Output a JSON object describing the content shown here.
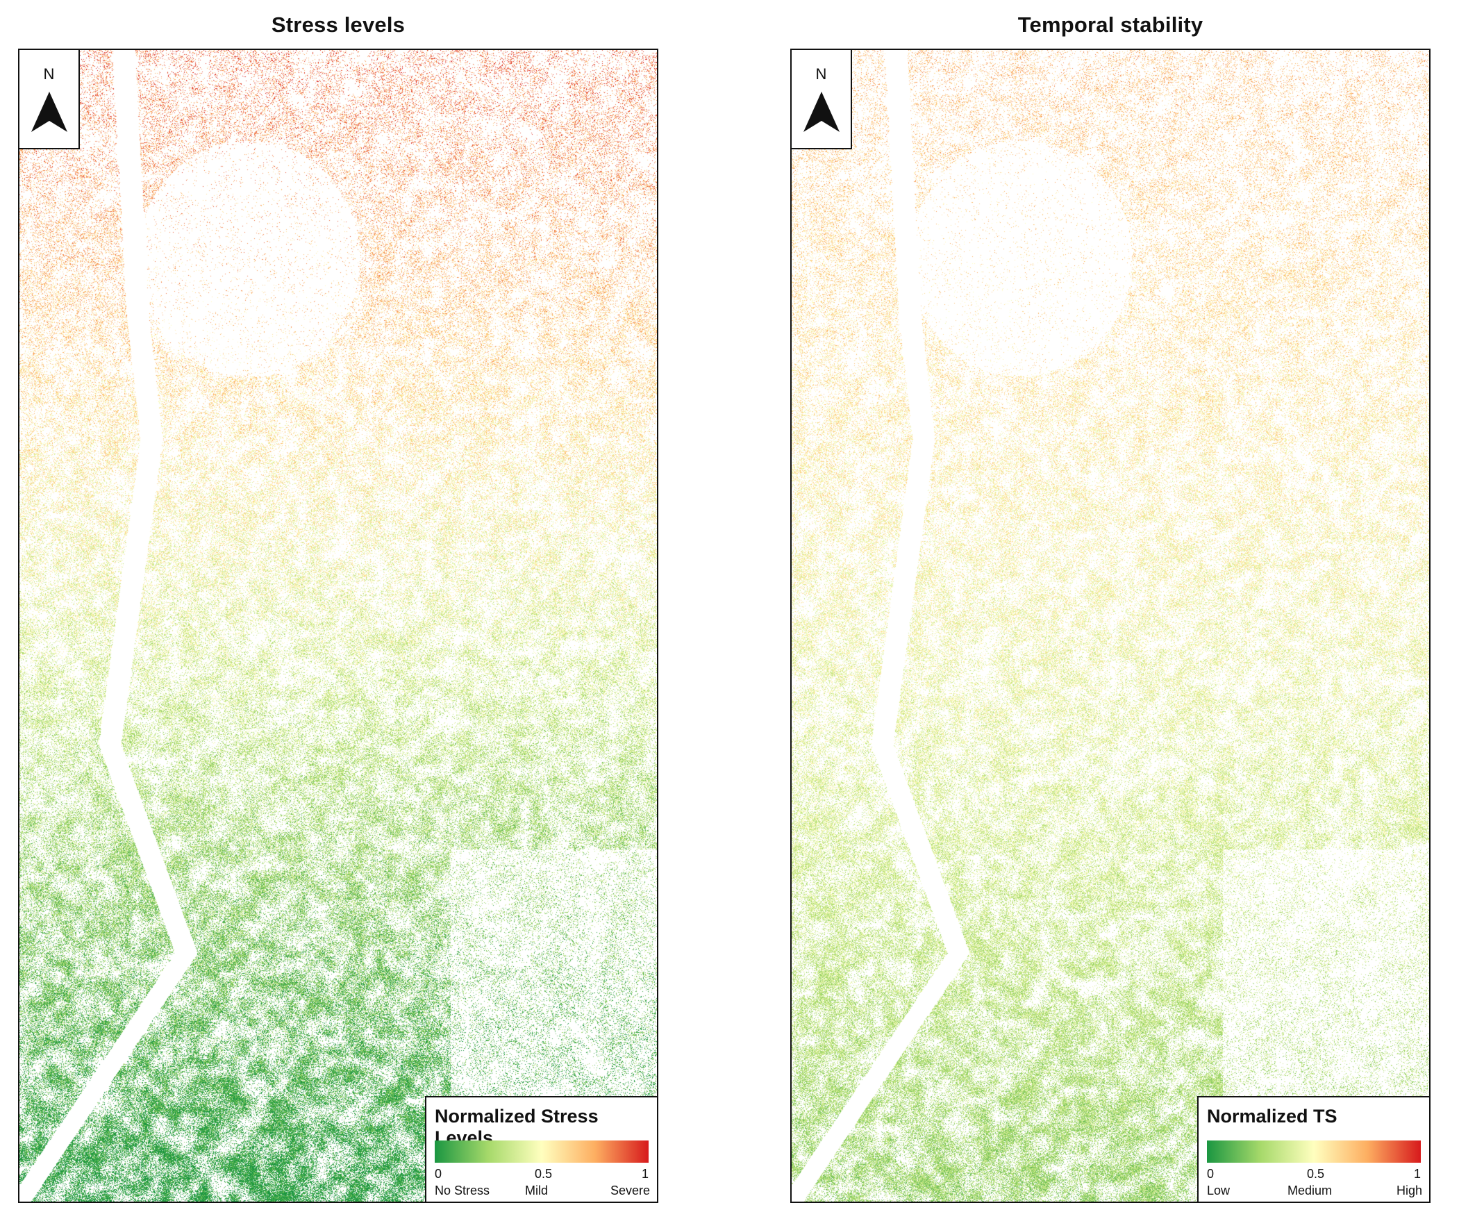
{
  "panels": [
    {
      "title": "Stress levels",
      "north_label": "N",
      "legend": {
        "title": "Normalized Stress Levels",
        "ticks": [
          "0",
          "0.5",
          "1"
        ],
        "classes": [
          "No Stress",
          "Mild",
          "Severe"
        ]
      }
    },
    {
      "title": "Temporal stability",
      "north_label": "N",
      "legend": {
        "title": "Normalized TS",
        "ticks": [
          "0",
          "0.5",
          "1"
        ],
        "classes": [
          "Low",
          "Medium",
          "High"
        ]
      }
    }
  ],
  "colors": {
    "ramp": [
      "#1a9641",
      "#a6d96a",
      "#ffffbf",
      "#fdae61",
      "#d7191c"
    ],
    "frame": "#111111",
    "background": "#ffffff"
  },
  "icons": [
    "north-arrow-icon"
  ]
}
